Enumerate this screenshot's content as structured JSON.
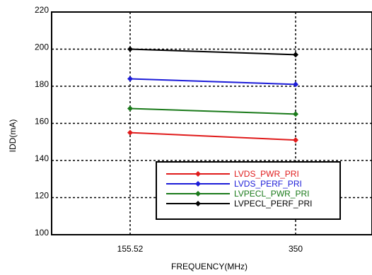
{
  "chart_data": {
    "type": "line",
    "title": "",
    "xlabel": "FREQUENCY(MHz)",
    "ylabel": "IDD(mA)",
    "categories": [
      "155.52",
      "350"
    ],
    "ylim": [
      100,
      220
    ],
    "yticks": [
      100,
      120,
      140,
      160,
      180,
      200,
      220
    ],
    "grid": true,
    "legend_position": "bottom-right",
    "series": [
      {
        "name": "LVDS_PWR_PRI",
        "color": "#e01b1b",
        "values": [
          155,
          151
        ]
      },
      {
        "name": "LVDS_PERF_PRI",
        "color": "#1c1cd8",
        "values": [
          184,
          181
        ]
      },
      {
        "name": "LVPECL_PWR_PRI",
        "color": "#1a7a1a",
        "values": [
          168,
          165
        ]
      },
      {
        "name": "LVPECL_PERF_PRI",
        "color": "#000000",
        "values": [
          200,
          197
        ]
      }
    ]
  }
}
